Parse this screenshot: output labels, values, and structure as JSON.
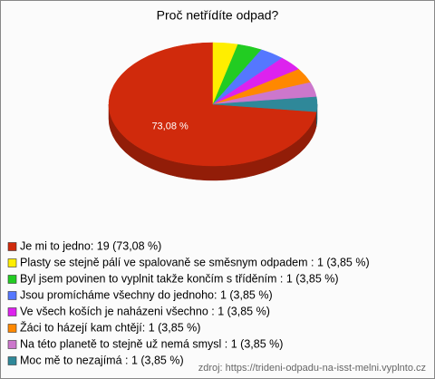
{
  "chart_data": {
    "type": "pie",
    "title": "Proč netřídíte odpad?",
    "categories": [
      "Je mi to jedno: 19 (73,08 %)",
      "Plasty se stejně pálí ve spalovaně se směsnym odpadem : 1 (3,85 %)",
      "Byl jsem povinen to vyplnit takže končím s tříděním : 1 (3,85 %)",
      "Jsou promícháme všechny do jednoho: 1 (3,85 %)",
      "Ve všech koších je naházeni všechno : 1 (3,85 %)",
      "Žáci to házejí kam chtějí: 1 (3,85 %)",
      "Na této planetě to stejně už nemá smysl : 1 (3,85 %)",
      "Moc mě to nezajímá : 1 (3,85 %)"
    ],
    "values": [
      73.08,
      3.85,
      3.85,
      3.85,
      3.85,
      3.85,
      3.85,
      3.85
    ],
    "value_labels": [
      "73,08 %",
      null,
      null,
      null,
      null,
      null,
      null,
      null
    ],
    "colors": [
      "#d02a0c",
      "#ffee00",
      "#22cc22",
      "#5577ff",
      "#dd22ee",
      "#ff8800",
      "#cc77cc",
      "#2f8899"
    ],
    "source": "zdroj: https://trideni-odpadu-na-isst-melni.vyplnto.cz"
  }
}
